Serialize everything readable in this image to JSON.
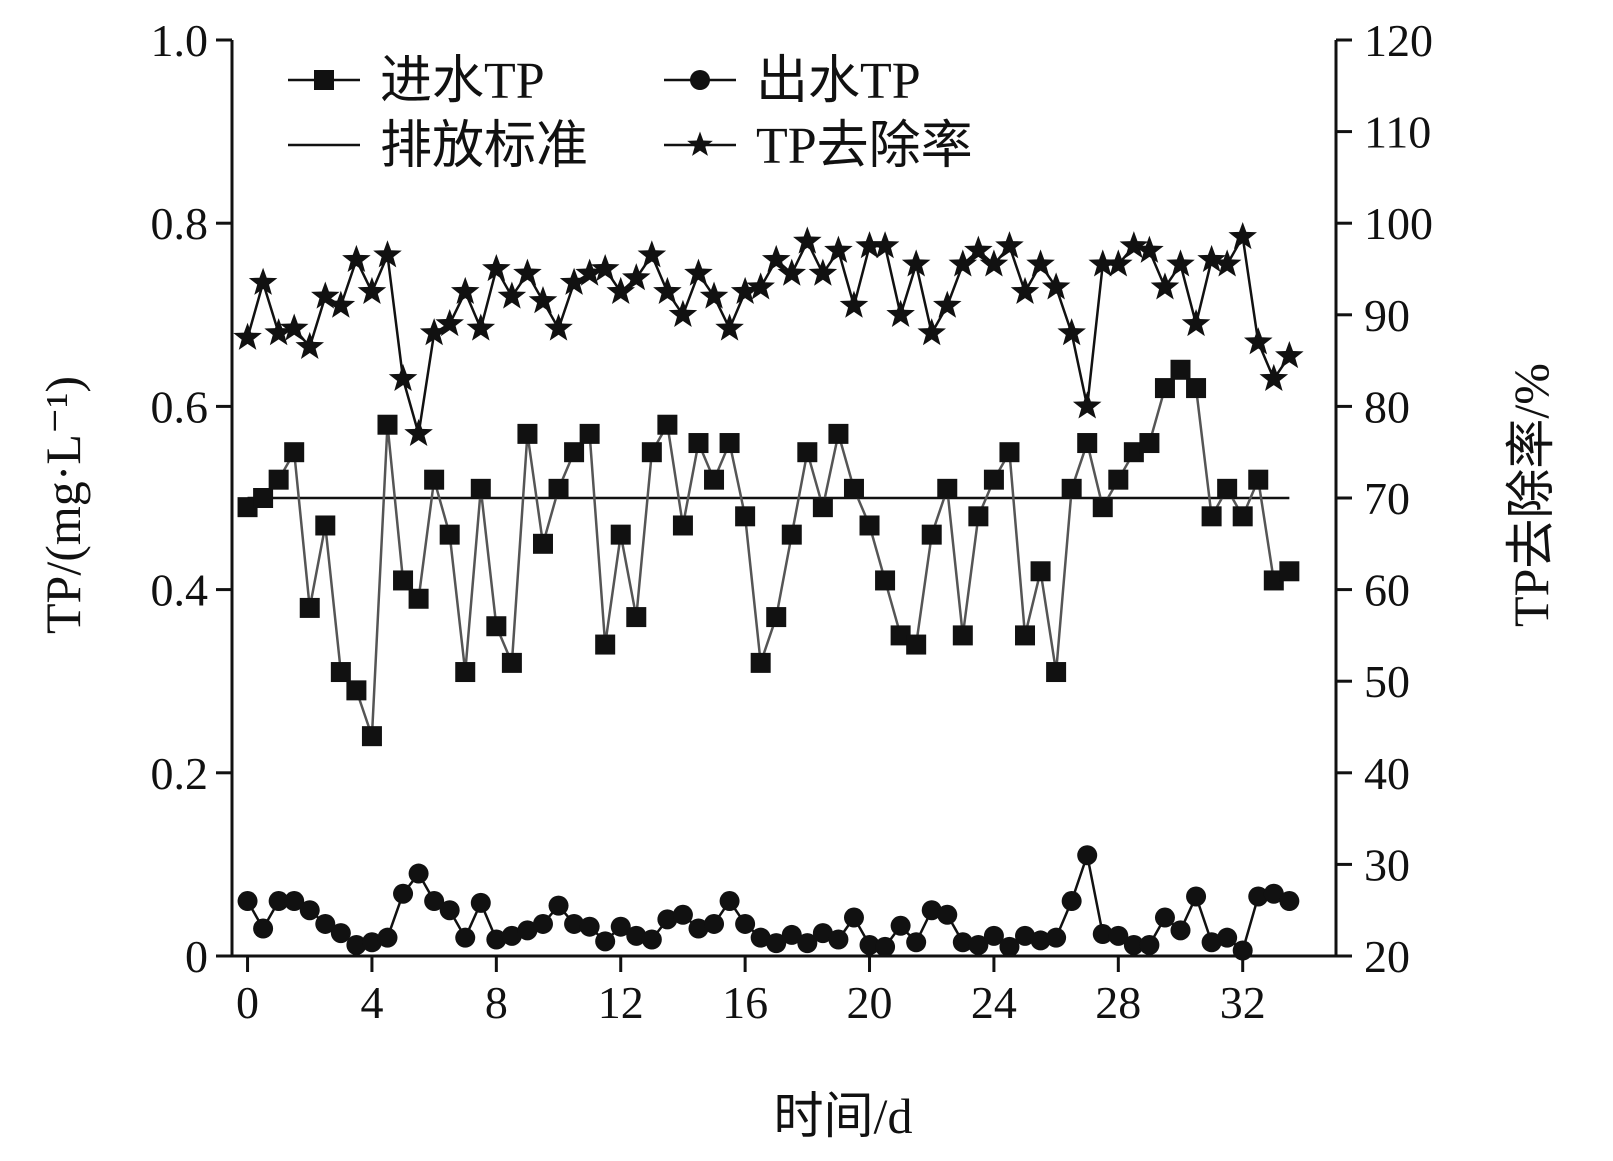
{
  "chart_data": {
    "type": "line",
    "xlabel": "时间/d",
    "ylabel_left": "TP/(mg·L⁻¹)",
    "ylabel_right": "TP去除率/%",
    "xlim": [
      -0.5,
      35
    ],
    "ylim_left": [
      0,
      1.0
    ],
    "ylim_right": [
      20,
      120
    ],
    "x_ticks": [
      0,
      4,
      8,
      12,
      16,
      20,
      24,
      28,
      32
    ],
    "x_tick_labels": [
      "0",
      "4",
      "8",
      "12",
      "16",
      "20",
      "24",
      "28",
      "32"
    ],
    "y_left_ticks": [
      0,
      0.2,
      0.4,
      0.6,
      0.8,
      1.0
    ],
    "y_left_tick_labels": [
      "0",
      "0.2",
      "0.4",
      "0.6",
      "0.8",
      "1.0"
    ],
    "y_right_ticks": [
      20,
      30,
      40,
      50,
      60,
      70,
      80,
      90,
      100,
      110,
      120
    ],
    "y_right_tick_labels": [
      "20",
      "30",
      "40",
      "50",
      "60",
      "70",
      "80",
      "90",
      "100",
      "110",
      "120"
    ],
    "grid": false,
    "legend_position": "top",
    "standard": {
      "name": "排放标准",
      "value": 0.5
    },
    "x": [
      0,
      0.5,
      1,
      1.5,
      2,
      2.5,
      3,
      3.5,
      4,
      4.5,
      5,
      5.5,
      6,
      6.5,
      7,
      7.5,
      8,
      8.5,
      9,
      9.5,
      10,
      10.5,
      11,
      11.5,
      12,
      12.5,
      13,
      13.5,
      14,
      14.5,
      15,
      15.5,
      16,
      16.5,
      17,
      17.5,
      18,
      18.5,
      19,
      19.5,
      20,
      20.5,
      21,
      21.5,
      22,
      22.5,
      23,
      23.5,
      24,
      24.5,
      25,
      25.5,
      26,
      26.5,
      27,
      27.5,
      28,
      28.5,
      29,
      29.5,
      30,
      30.5,
      31,
      31.5,
      32,
      32.5,
      33,
      33.5
    ],
    "series": [
      {
        "name": "进水TP",
        "axis": "left",
        "marker": "square",
        "values": [
          0.49,
          0.5,
          0.52,
          0.55,
          0.38,
          0.47,
          0.31,
          0.29,
          0.24,
          0.58,
          0.41,
          0.39,
          0.52,
          0.46,
          0.31,
          0.51,
          0.36,
          0.32,
          0.57,
          0.45,
          0.51,
          0.55,
          0.57,
          0.34,
          0.46,
          0.37,
          0.55,
          0.58,
          0.47,
          0.56,
          0.52,
          0.56,
          0.48,
          0.32,
          0.37,
          0.46,
          0.55,
          0.49,
          0.57,
          0.51,
          0.47,
          0.41,
          0.35,
          0.34,
          0.46,
          0.51,
          0.35,
          0.48,
          0.52,
          0.55,
          0.35,
          0.42,
          0.31,
          0.51,
          0.56,
          0.49,
          0.52,
          0.55,
          0.56,
          0.62,
          0.64,
          0.62,
          0.48,
          0.51,
          0.48,
          0.52,
          0.41,
          0.42
        ]
      },
      {
        "name": "出水TP",
        "axis": "left",
        "marker": "circle",
        "values": [
          0.06,
          0.03,
          0.06,
          0.06,
          0.05,
          0.035,
          0.025,
          0.012,
          0.015,
          0.02,
          0.068,
          0.09,
          0.06,
          0.05,
          0.02,
          0.058,
          0.018,
          0.022,
          0.028,
          0.035,
          0.055,
          0.035,
          0.032,
          0.016,
          0.032,
          0.022,
          0.018,
          0.04,
          0.045,
          0.03,
          0.035,
          0.06,
          0.035,
          0.02,
          0.014,
          0.023,
          0.014,
          0.025,
          0.018,
          0.042,
          0.012,
          0.01,
          0.033,
          0.015,
          0.05,
          0.045,
          0.015,
          0.012,
          0.022,
          0.01,
          0.022,
          0.017,
          0.02,
          0.06,
          0.11,
          0.024,
          0.022,
          0.012,
          0.012,
          0.042,
          0.028,
          0.065,
          0.015,
          0.02,
          0.006,
          0.065,
          0.068,
          0.06
        ]
      },
      {
        "name": "TP去除率",
        "axis": "right",
        "marker": "star",
        "values": [
          87.5,
          93.5,
          88,
          88.5,
          86.5,
          92,
          91,
          96,
          92.5,
          96.5,
          83,
          77,
          88,
          89,
          92.5,
          88.5,
          95,
          92,
          94.5,
          91.5,
          88.5,
          93.5,
          94.5,
          95,
          92.5,
          94,
          96.5,
          92.5,
          90,
          94.5,
          92,
          88.5,
          92.5,
          93,
          96,
          94.5,
          98,
          94.5,
          97,
          91,
          97.5,
          97.5,
          90,
          95.5,
          88,
          91,
          95.5,
          97,
          95.5,
          97.5,
          92.5,
          95.5,
          93,
          88,
          80,
          95.5,
          95.5,
          97.5,
          97,
          93,
          95.5,
          89,
          96,
          95.5,
          98.5,
          87,
          83,
          85.5
        ]
      }
    ],
    "legend": [
      {
        "label": "进水TP",
        "marker": "square",
        "row": 0,
        "col": 0
      },
      {
        "label": "出水TP",
        "marker": "circle",
        "row": 0,
        "col": 1
      },
      {
        "label": "排放标准",
        "marker": "none",
        "row": 1,
        "col": 0
      },
      {
        "label": "TP去除率",
        "marker": "star",
        "row": 1,
        "col": 1
      }
    ]
  },
  "colors": {
    "axis": "#111111",
    "influent_line": "#555555",
    "marker": "#111111",
    "background": "#ffffff"
  }
}
